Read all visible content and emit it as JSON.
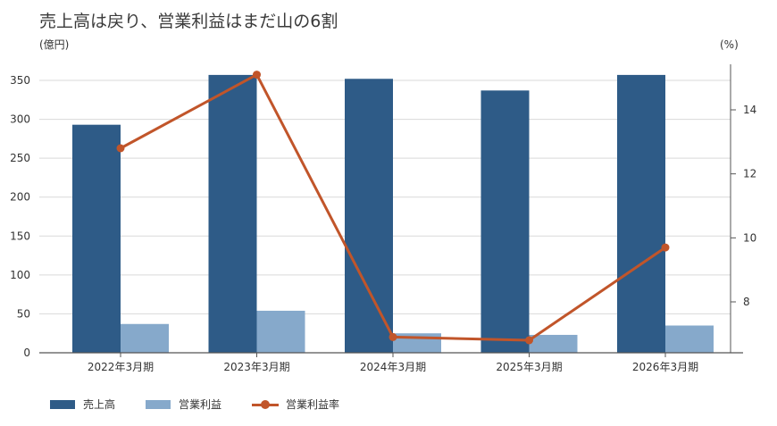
{
  "chart_data": {
    "type": "bar",
    "title": "売上高は戻り、営業利益はまだ山の6割",
    "left_unit": "(億円)",
    "right_unit": "(%)",
    "categories": [
      "2022年3月期",
      "2023年3月期",
      "2024年3月期",
      "2025年3月期",
      "2026年3月期"
    ],
    "series": [
      {
        "name": "売上高",
        "type": "bar",
        "axis": "left",
        "color": "#2e5b87",
        "values": [
          293,
          357,
          352,
          337,
          357
        ]
      },
      {
        "name": "営業利益",
        "type": "bar",
        "axis": "left",
        "color": "#86a9cb",
        "values": [
          37,
          54,
          25,
          23,
          35
        ]
      },
      {
        "name": "営業利益率",
        "type": "line",
        "axis": "right",
        "color": "#c1552a",
        "values": [
          12.8,
          15.1,
          6.9,
          6.8,
          9.7
        ]
      }
    ],
    "y_left": {
      "min": 0,
      "max": 350,
      "ticks": [
        0,
        50,
        100,
        150,
        200,
        250,
        300,
        350
      ]
    },
    "y_right": {
      "min": 6.29,
      "max": 15.0,
      "ticks": [
        8,
        10,
        12,
        14
      ]
    },
    "grid": true,
    "legend_position": "bottom-left"
  }
}
